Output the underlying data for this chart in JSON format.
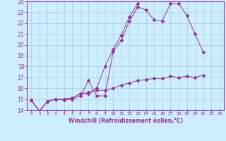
{
  "title": "",
  "xlabel": "Windchill (Refroidissement éolien,°C)",
  "bg_color": "#cceeff",
  "grid_color": "#aaccdd",
  "line_color": "#993399",
  "xlim": [
    -0.5,
    23.5
  ],
  "ylim": [
    14,
    24
  ],
  "xticks": [
    0,
    1,
    2,
    3,
    4,
    5,
    6,
    7,
    8,
    9,
    10,
    11,
    12,
    13,
    14,
    15,
    16,
    17,
    18,
    19,
    20,
    21,
    22,
    23
  ],
  "yticks": [
    14,
    15,
    16,
    17,
    18,
    19,
    20,
    21,
    22,
    23,
    24
  ],
  "lines": [
    {
      "x": [
        0,
        1,
        2,
        3,
        4,
        5,
        6,
        7,
        8,
        9,
        10,
        11,
        12,
        13,
        14,
        15,
        16,
        17,
        18,
        19,
        20,
        21
      ],
      "y": [
        14.9,
        13.9,
        14.8,
        15.0,
        14.9,
        15.0,
        15.3,
        16.7,
        15.3,
        15.3,
        19.4,
        20.4,
        22.2,
        23.5,
        23.2,
        22.3,
        22.2,
        23.8,
        23.8,
        22.7,
        21.0,
        19.3
      ]
    },
    {
      "x": [
        0,
        1,
        2,
        3,
        4,
        5,
        6,
        7,
        8,
        9,
        10,
        11,
        12,
        13
      ],
      "y": [
        14.9,
        13.9,
        14.8,
        15.0,
        15.0,
        15.1,
        15.5,
        15.6,
        16.0,
        18.0,
        19.6,
        20.9,
        22.6,
        23.8
      ]
    },
    {
      "x": [
        0,
        1,
        2,
        3,
        4,
        5,
        6,
        7,
        8,
        9,
        10,
        11,
        12,
        13,
        14,
        15,
        16,
        17,
        18,
        19,
        20,
        21
      ],
      "y": [
        14.9,
        13.9,
        14.8,
        15.0,
        15.0,
        15.1,
        15.5,
        15.5,
        15.8,
        15.8,
        16.0,
        16.3,
        16.5,
        16.7,
        16.8,
        16.9,
        16.9,
        17.1,
        17.0,
        17.1,
        17.0,
        17.2
      ]
    }
  ]
}
